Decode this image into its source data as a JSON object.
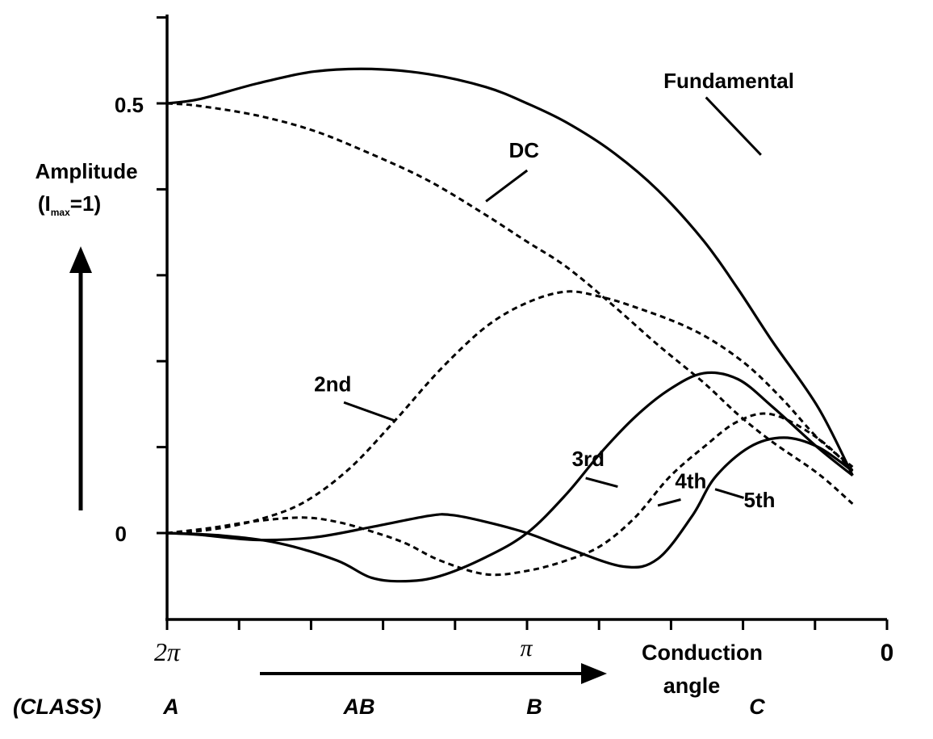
{
  "chart_data": {
    "type": "line",
    "title": "",
    "ylabel": {
      "main": "Amplitude",
      "paren_open": "(I",
      "sub": "max",
      "paren_close": "=1)"
    },
    "xlabel": {
      "line1": "Conduction",
      "line2": "angle"
    },
    "xlim": [
      6.2832,
      0
    ],
    "ylim": [
      -0.1,
      0.6
    ],
    "x_ticks": [
      {
        "label": "2π",
        "x": 6.2832
      },
      {
        "label": "π",
        "x": 3.1416
      },
      {
        "label": "0",
        "x": 0
      }
    ],
    "y_ticks": [
      {
        "label": "0.5",
        "y": 0.5
      },
      {
        "label": "0",
        "y": 0
      }
    ],
    "class_heading": "(CLASS)",
    "classes": [
      {
        "label": "A",
        "x": 6.2832
      },
      {
        "label": "AB",
        "x": 4.71
      },
      {
        "label": "B",
        "x": 3.1416
      },
      {
        "label": "C",
        "x": 1.2
      }
    ],
    "series": [
      {
        "name": "Fundamental",
        "dash": false,
        "label_at": [
          1.95,
          0.518
        ],
        "leader": [
          [
            1.58,
            0.507
          ],
          [
            1.1,
            0.44
          ]
        ],
        "x": [
          6.2832,
          6,
          5.5,
          5,
          4.5,
          4,
          3.5,
          3.1416,
          2.8,
          2.4,
          2,
          1.6,
          1.3,
          1.0,
          0.6,
          0.3
        ],
        "y": [
          0.5,
          0.505,
          0.523,
          0.537,
          0.54,
          0.534,
          0.519,
          0.5,
          0.478,
          0.444,
          0.399,
          0.34,
          0.284,
          0.223,
          0.146,
          0.067
        ]
      },
      {
        "name": "DC",
        "dash": true,
        "label_at": [
          3.3,
          0.437
        ],
        "leader": [
          [
            3.14,
            0.422
          ],
          [
            3.5,
            0.386
          ]
        ],
        "x": [
          6.2832,
          6,
          5.5,
          5,
          4.5,
          4,
          3.5,
          3.1416,
          2.8,
          2.4,
          2,
          1.6,
          1.3,
          1.0,
          0.6,
          0.3
        ],
        "y": [
          0.5,
          0.497,
          0.486,
          0.468,
          0.441,
          0.41,
          0.37,
          0.339,
          0.31,
          0.266,
          0.219,
          0.175,
          0.138,
          0.106,
          0.069,
          0.034
        ]
      },
      {
        "name": "2nd",
        "dash": true,
        "label_at": [
          5.0,
          0.165
        ],
        "leader": [
          [
            4.74,
            0.152
          ],
          [
            4.3,
            0.131
          ]
        ],
        "x": [
          6.2832,
          5.9,
          5.5,
          5.1,
          4.7,
          4.3,
          3.9,
          3.5,
          3.1416,
          2.8,
          2.5,
          2.2,
          1.8,
          1.5,
          1.2,
          0.9,
          0.6,
          0.3
        ],
        "y": [
          0,
          0.004,
          0.015,
          0.035,
          0.074,
          0.13,
          0.19,
          0.24,
          0.268,
          0.281,
          0.275,
          0.263,
          0.243,
          0.222,
          0.193,
          0.154,
          0.11,
          0.077
        ]
      },
      {
        "name": "3rd",
        "dash": false,
        "label_at": [
          2.75,
          0.078
        ],
        "leader": [
          [
            2.63,
            0.064
          ],
          [
            2.35,
            0.054
          ]
        ],
        "x": [
          6.2832,
          5.8,
          5.3,
          4.8,
          4.5,
          4.2,
          3.9,
          3.5,
          3.1416,
          2.8,
          2.5,
          2.2,
          1.9,
          1.6,
          1.3,
          1.0,
          0.6,
          0.3
        ],
        "y": [
          0,
          -0.003,
          -0.012,
          -0.032,
          -0.052,
          -0.056,
          -0.05,
          -0.028,
          0.0,
          0.045,
          0.093,
          0.135,
          0.167,
          0.186,
          0.179,
          0.147,
          0.099,
          0.067
        ]
      },
      {
        "name": "4th",
        "dash": true,
        "label_at": [
          1.85,
          0.052
        ],
        "leader": [
          [
            1.8,
            0.039
          ],
          [
            2.0,
            0.032
          ]
        ],
        "x": [
          6.2832,
          5.9,
          5.5,
          5.1,
          4.8,
          4.5,
          4.2,
          3.9,
          3.5,
          3.1416,
          2.8,
          2.5,
          2.2,
          1.9,
          1.6,
          1.3,
          1.0,
          0.6,
          0.3
        ],
        "y": [
          0,
          0.006,
          0.014,
          0.018,
          0.013,
          0.002,
          -0.012,
          -0.032,
          -0.048,
          -0.044,
          -0.032,
          -0.015,
          0.018,
          0.065,
          0.1,
          0.13,
          0.138,
          0.11,
          0.073
        ]
      },
      {
        "name": "5th",
        "dash": false,
        "label_at": [
          1.25,
          0.03
        ],
        "leader": [
          [
            1.25,
            0.041
          ],
          [
            1.5,
            0.051
          ]
        ],
        "x": [
          6.2832,
          6,
          5.5,
          5.0,
          4.5,
          4.0,
          3.8,
          3.5,
          3.1416,
          2.8,
          2.3,
          2.0,
          1.7,
          1.5,
          1.2,
          0.9,
          0.6,
          0.3
        ],
        "y": [
          0,
          -0.002,
          -0.008,
          -0.005,
          0.007,
          0.02,
          0.021,
          0.013,
          0.0,
          -0.017,
          -0.039,
          -0.03,
          0.02,
          0.065,
          0.1,
          0.111,
          0.1,
          0.072
        ]
      }
    ]
  }
}
